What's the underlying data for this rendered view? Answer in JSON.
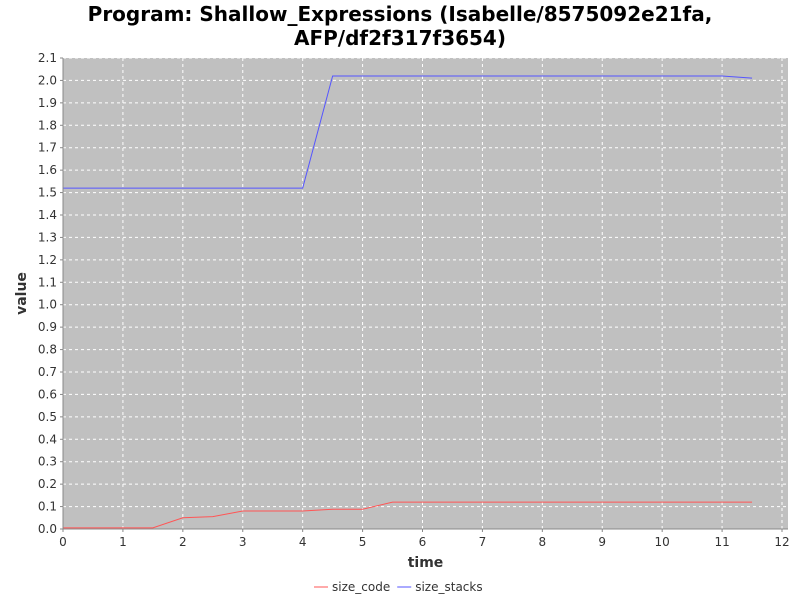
{
  "chart_data": {
    "type": "line",
    "title_line1": "Program: Shallow_Expressions (Isabelle/8575092e21fa,",
    "title_line2": "AFP/df2f317f3654)",
    "xlabel": "time",
    "ylabel": "value",
    "xlim": [
      0,
      12.1
    ],
    "ylim": [
      0,
      2.1
    ],
    "xticks": [
      0,
      1,
      2,
      3,
      4,
      5,
      6,
      7,
      8,
      9,
      10,
      11,
      12
    ],
    "yticks": [
      "0.0",
      "0.1",
      "0.2",
      "0.3",
      "0.4",
      "0.5",
      "0.6",
      "0.7",
      "0.8",
      "0.9",
      "1.0",
      "1.1",
      "1.2",
      "1.3",
      "1.4",
      "1.5",
      "1.6",
      "1.7",
      "1.8",
      "1.9",
      "2.0",
      "2.1"
    ],
    "grid": true,
    "legend_position": "bottom-center",
    "series": [
      {
        "name": "size_code",
        "color": "#ff5555",
        "x": [
          0,
          0.5,
          1,
          1.5,
          2,
          2.5,
          3,
          3.5,
          4,
          4.5,
          5,
          5.5,
          6,
          6.5,
          7,
          7.5,
          8,
          8.5,
          9,
          9.5,
          10,
          10.5,
          11,
          11.5
        ],
        "y": [
          0.005,
          0.005,
          0.005,
          0.005,
          0.05,
          0.055,
          0.08,
          0.08,
          0.08,
          0.088,
          0.088,
          0.12,
          0.12,
          0.12,
          0.12,
          0.12,
          0.12,
          0.12,
          0.12,
          0.12,
          0.12,
          0.12,
          0.12,
          0.12
        ]
      },
      {
        "name": "size_stacks",
        "color": "#5555ff",
        "x": [
          0,
          0.5,
          1,
          1.5,
          2,
          2.5,
          3,
          3.5,
          4,
          4.5,
          5,
          5.5,
          6,
          6.5,
          7,
          7.5,
          8,
          8.5,
          9,
          9.5,
          10,
          10.5,
          11,
          11.5
        ],
        "y": [
          1.52,
          1.52,
          1.52,
          1.52,
          1.52,
          1.52,
          1.52,
          1.52,
          1.52,
          2.02,
          2.02,
          2.02,
          2.02,
          2.02,
          2.02,
          2.02,
          2.02,
          2.02,
          2.02,
          2.02,
          2.02,
          2.02,
          2.02,
          2.01
        ]
      }
    ]
  }
}
